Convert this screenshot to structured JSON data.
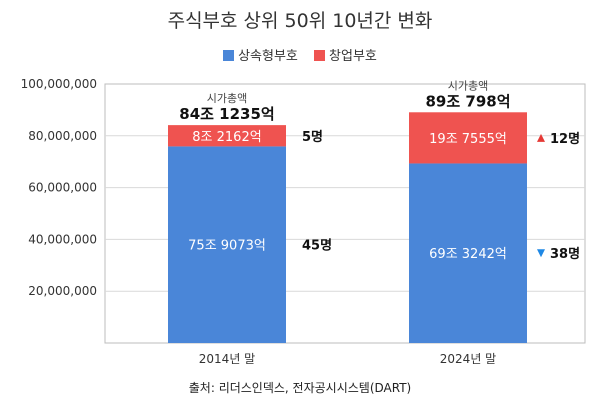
{
  "title": "주식부호 상위 50위 10년간 변화",
  "source": "출처: 리더스인덱스, 전자공시시스템(DART)",
  "colors": {
    "self_made": "#ef5350",
    "inherited": "#4a86d8",
    "up_arrow": "#e53935",
    "down_arrow": "#1e88e5"
  },
  "chart_data": {
    "type": "bar",
    "stacked": true,
    "categories": [
      "2014년 말",
      "2024년 말"
    ],
    "series": [
      {
        "name": "상속형부호",
        "values": [
          75907300,
          69324200
        ],
        "labels": [
          "75조 9073억",
          "69조 3242억"
        ],
        "counts": [
          "45명",
          "38명"
        ]
      },
      {
        "name": "창업부호",
        "values": [
          8216200,
          19755500
        ],
        "labels": [
          "8조 2162억",
          "19조 7555억"
        ],
        "counts": [
          "5명",
          "12명"
        ]
      }
    ],
    "totals": {
      "caption": "시가총액",
      "values": [
        84123500,
        89079800
      ],
      "labels": [
        "84조 1235억",
        "89조 798억"
      ]
    },
    "yticks": [
      "20,000,000",
      "40,000,000",
      "60,000,000",
      "80,000,000",
      "100,000,000"
    ],
    "ytick_values": [
      20000000,
      40000000,
      60000000,
      80000000,
      100000000
    ],
    "ylim": [
      0,
      100000000
    ],
    "grid": true,
    "legend": "top-center",
    "count_markers": [
      [
        "",
        ""
      ],
      [
        "down",
        "up"
      ]
    ]
  }
}
